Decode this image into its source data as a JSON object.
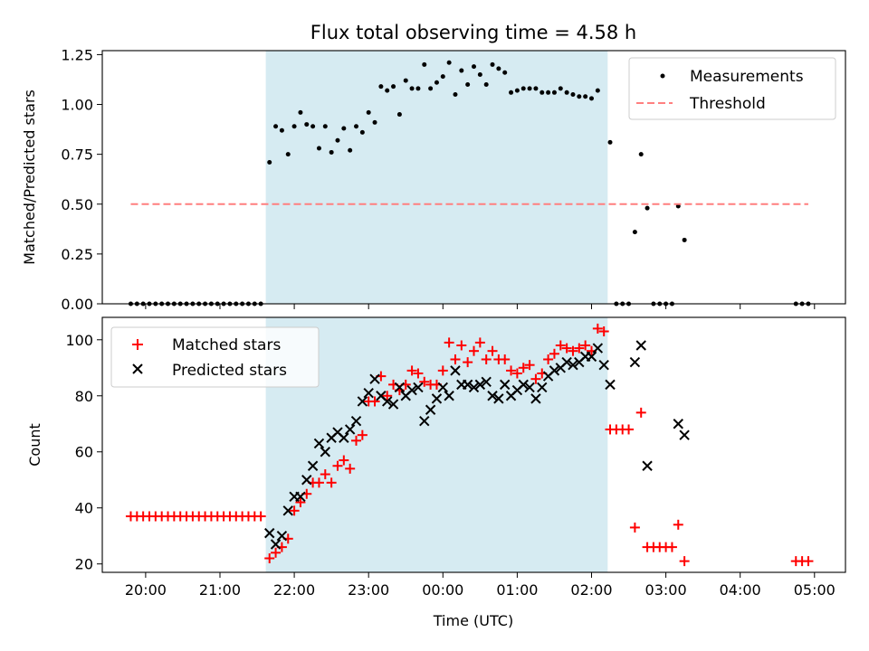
{
  "chart_data": [
    {
      "type": "scatter",
      "title": "Flux total observing time = 4.58 h",
      "ylabel": "Matched/Predicted stars",
      "xlim": [
        "19:25",
        "05:25"
      ],
      "ylim": [
        0,
        1.27
      ],
      "yticks": [
        "0.00",
        "0.25",
        "0.50",
        "0.75",
        "1.00",
        "1.25"
      ],
      "grid": false,
      "legend_position": "top-right",
      "shaded_span": {
        "start": "21:37",
        "end": "02:13",
        "color": "#add8e6"
      },
      "series": [
        {
          "name": "Measurements",
          "marker": "dot",
          "color": "#000000",
          "points": [
            [
              "19:48",
              0
            ],
            [
              "19:53",
              0
            ],
            [
              "19:58",
              0
            ],
            [
              "20:03",
              0
            ],
            [
              "20:08",
              0
            ],
            [
              "20:13",
              0
            ],
            [
              "20:18",
              0
            ],
            [
              "20:23",
              0
            ],
            [
              "20:28",
              0
            ],
            [
              "20:33",
              0
            ],
            [
              "20:38",
              0
            ],
            [
              "20:43",
              0
            ],
            [
              "20:48",
              0
            ],
            [
              "20:53",
              0
            ],
            [
              "20:58",
              0
            ],
            [
              "21:03",
              0
            ],
            [
              "21:08",
              0
            ],
            [
              "21:13",
              0
            ],
            [
              "21:18",
              0
            ],
            [
              "21:23",
              0
            ],
            [
              "21:28",
              0
            ],
            [
              "21:33",
              0
            ],
            [
              "21:40",
              0.71
            ],
            [
              "21:45",
              0.89
            ],
            [
              "21:50",
              0.87
            ],
            [
              "21:55",
              0.75
            ],
            [
              "22:00",
              0.89
            ],
            [
              "22:05",
              0.96
            ],
            [
              "22:10",
              0.9
            ],
            [
              "22:15",
              0.89
            ],
            [
              "22:20",
              0.78
            ],
            [
              "22:25",
              0.89
            ],
            [
              "22:30",
              0.76
            ],
            [
              "22:35",
              0.82
            ],
            [
              "22:40",
              0.88
            ],
            [
              "22:45",
              0.77
            ],
            [
              "22:50",
              0.89
            ],
            [
              "22:55",
              0.86
            ],
            [
              "23:00",
              0.96
            ],
            [
              "23:05",
              0.91
            ],
            [
              "23:10",
              1.09
            ],
            [
              "23:15",
              1.07
            ],
            [
              "23:20",
              1.09
            ],
            [
              "23:25",
              0.95
            ],
            [
              "23:30",
              1.12
            ],
            [
              "23:35",
              1.08
            ],
            [
              "23:40",
              1.08
            ],
            [
              "23:45",
              1.2
            ],
            [
              "23:50",
              1.08
            ],
            [
              "23:55",
              1.11
            ],
            [
              "00:00",
              1.14
            ],
            [
              "00:05",
              1.21
            ],
            [
              "00:10",
              1.05
            ],
            [
              "00:15",
              1.17
            ],
            [
              "00:20",
              1.1
            ],
            [
              "00:25",
              1.19
            ],
            [
              "00:30",
              1.15
            ],
            [
              "00:35",
              1.1
            ],
            [
              "00:40",
              1.2
            ],
            [
              "00:45",
              1.18
            ],
            [
              "00:50",
              1.16
            ],
            [
              "00:55",
              1.06
            ],
            [
              "01:00",
              1.07
            ],
            [
              "01:05",
              1.08
            ],
            [
              "01:10",
              1.08
            ],
            [
              "01:15",
              1.08
            ],
            [
              "01:20",
              1.06
            ],
            [
              "01:25",
              1.06
            ],
            [
              "01:30",
              1.06
            ],
            [
              "01:35",
              1.08
            ],
            [
              "01:40",
              1.06
            ],
            [
              "01:45",
              1.05
            ],
            [
              "01:50",
              1.04
            ],
            [
              "01:55",
              1.04
            ],
            [
              "02:00",
              1.03
            ],
            [
              "02:05",
              1.07
            ],
            [
              "02:15",
              0.81
            ],
            [
              "02:20",
              0
            ],
            [
              "02:25",
              0
            ],
            [
              "02:30",
              0
            ],
            [
              "02:35",
              0.36
            ],
            [
              "02:40",
              0.75
            ],
            [
              "02:45",
              0.48
            ],
            [
              "02:50",
              0
            ],
            [
              "02:55",
              0
            ],
            [
              "03:00",
              0
            ],
            [
              "03:05",
              0
            ],
            [
              "03:10",
              0.49
            ],
            [
              "03:15",
              0.32
            ],
            [
              "04:45",
              0
            ],
            [
              "04:50",
              0
            ],
            [
              "04:55",
              0
            ]
          ]
        },
        {
          "name": "Threshold",
          "marker": "dashed-line",
          "color": "#ff7f7f",
          "points": [
            [
              "19:48",
              0.5
            ],
            [
              "04:55",
              0.5
            ]
          ]
        }
      ]
    },
    {
      "type": "scatter",
      "xlabel": "Time (UTC)",
      "ylabel": "Count",
      "xlim": [
        "19:25",
        "05:25"
      ],
      "ylim": [
        17,
        108
      ],
      "xticks": [
        "20:00",
        "21:00",
        "22:00",
        "23:00",
        "00:00",
        "01:00",
        "02:00",
        "03:00",
        "04:00",
        "05:00"
      ],
      "yticks": [
        "20",
        "40",
        "60",
        "80",
        "100"
      ],
      "grid": false,
      "legend_position": "top-left",
      "shaded_span": {
        "start": "21:37",
        "end": "02:13",
        "color": "#add8e6"
      },
      "series": [
        {
          "name": "Matched stars",
          "marker": "plus",
          "color": "#ff0000",
          "points": [
            [
              "19:48",
              37
            ],
            [
              "19:53",
              37
            ],
            [
              "19:58",
              37
            ],
            [
              "20:03",
              37
            ],
            [
              "20:08",
              37
            ],
            [
              "20:13",
              37
            ],
            [
              "20:18",
              37
            ],
            [
              "20:23",
              37
            ],
            [
              "20:28",
              37
            ],
            [
              "20:33",
              37
            ],
            [
              "20:38",
              37
            ],
            [
              "20:43",
              37
            ],
            [
              "20:48",
              37
            ],
            [
              "20:53",
              37
            ],
            [
              "20:58",
              37
            ],
            [
              "21:03",
              37
            ],
            [
              "21:08",
              37
            ],
            [
              "21:13",
              37
            ],
            [
              "21:18",
              37
            ],
            [
              "21:23",
              37
            ],
            [
              "21:28",
              37
            ],
            [
              "21:33",
              37
            ],
            [
              "21:40",
              22
            ],
            [
              "21:45",
              24
            ],
            [
              "21:50",
              26
            ],
            [
              "21:55",
              29
            ],
            [
              "22:00",
              39
            ],
            [
              "22:05",
              42
            ],
            [
              "22:10",
              45
            ],
            [
              "22:15",
              49
            ],
            [
              "22:20",
              49
            ],
            [
              "22:25",
              52
            ],
            [
              "22:30",
              49
            ],
            [
              "22:35",
              55
            ],
            [
              "22:40",
              57
            ],
            [
              "22:45",
              54
            ],
            [
              "22:50",
              64
            ],
            [
              "22:55",
              66
            ],
            [
              "23:00",
              78
            ],
            [
              "23:05",
              78
            ],
            [
              "23:10",
              87
            ],
            [
              "23:15",
              80
            ],
            [
              "23:20",
              84
            ],
            [
              "23:25",
              82
            ],
            [
              "23:30",
              84
            ],
            [
              "23:35",
              89
            ],
            [
              "23:40",
              88
            ],
            [
              "23:45",
              85
            ],
            [
              "23:50",
              84
            ],
            [
              "23:55",
              84
            ],
            [
              "00:00",
              89
            ],
            [
              "00:05",
              99
            ],
            [
              "00:10",
              93
            ],
            [
              "00:15",
              98
            ],
            [
              "00:20",
              92
            ],
            [
              "00:25",
              96
            ],
            [
              "00:30",
              99
            ],
            [
              "00:35",
              93
            ],
            [
              "00:40",
              96
            ],
            [
              "00:45",
              93
            ],
            [
              "00:50",
              93
            ],
            [
              "00:55",
              89
            ],
            [
              "01:00",
              88
            ],
            [
              "01:05",
              90
            ],
            [
              "01:10",
              91
            ],
            [
              "01:15",
              86
            ],
            [
              "01:20",
              88
            ],
            [
              "01:25",
              93
            ],
            [
              "01:30",
              95
            ],
            [
              "01:35",
              98
            ],
            [
              "01:40",
              97
            ],
            [
              "01:45",
              96
            ],
            [
              "01:50",
              97
            ],
            [
              "01:55",
              98
            ],
            [
              "02:00",
              96
            ],
            [
              "02:05",
              104
            ],
            [
              "02:10",
              103
            ],
            [
              "02:15",
              68
            ],
            [
              "02:20",
              68
            ],
            [
              "02:25",
              68
            ],
            [
              "02:30",
              68
            ],
            [
              "02:35",
              33
            ],
            [
              "02:40",
              74
            ],
            [
              "02:45",
              26
            ],
            [
              "02:50",
              26
            ],
            [
              "02:55",
              26
            ],
            [
              "03:00",
              26
            ],
            [
              "03:05",
              26
            ],
            [
              "03:10",
              34
            ],
            [
              "03:15",
              21
            ],
            [
              "04:45",
              21
            ],
            [
              "04:50",
              21
            ],
            [
              "04:55",
              21
            ]
          ]
        },
        {
          "name": "Predicted stars",
          "marker": "x",
          "color": "#000000",
          "points": [
            [
              "21:40",
              31
            ],
            [
              "21:45",
              27
            ],
            [
              "21:50",
              30
            ],
            [
              "21:55",
              39
            ],
            [
              "22:00",
              44
            ],
            [
              "22:05",
              44
            ],
            [
              "22:10",
              50
            ],
            [
              "22:15",
              55
            ],
            [
              "22:20",
              63
            ],
            [
              "22:25",
              60
            ],
            [
              "22:30",
              65
            ],
            [
              "22:35",
              67
            ],
            [
              "22:40",
              65
            ],
            [
              "22:45",
              68
            ],
            [
              "22:50",
              71
            ],
            [
              "22:55",
              78
            ],
            [
              "23:00",
              81
            ],
            [
              "23:05",
              86
            ],
            [
              "23:10",
              80
            ],
            [
              "23:15",
              78
            ],
            [
              "23:20",
              77
            ],
            [
              "23:25",
              83
            ],
            [
              "23:30",
              80
            ],
            [
              "23:35",
              82
            ],
            [
              "23:40",
              83
            ],
            [
              "23:45",
              71
            ],
            [
              "23:50",
              75
            ],
            [
              "23:55",
              79
            ],
            [
              "00:00",
              83
            ],
            [
              "00:05",
              80
            ],
            [
              "00:10",
              89
            ],
            [
              "00:15",
              84
            ],
            [
              "00:20",
              84
            ],
            [
              "00:25",
              83
            ],
            [
              "00:30",
              84
            ],
            [
              "00:35",
              85
            ],
            [
              "00:40",
              80
            ],
            [
              "00:45",
              79
            ],
            [
              "00:50",
              84
            ],
            [
              "00:55",
              80
            ],
            [
              "01:00",
              82
            ],
            [
              "01:05",
              84
            ],
            [
              "01:10",
              83
            ],
            [
              "01:15",
              79
            ],
            [
              "01:20",
              83
            ],
            [
              "01:25",
              87
            ],
            [
              "01:30",
              89
            ],
            [
              "01:35",
              90
            ],
            [
              "01:40",
              92
            ],
            [
              "01:45",
              91
            ],
            [
              "01:50",
              92
            ],
            [
              "01:55",
              94
            ],
            [
              "02:00",
              94
            ],
            [
              "02:05",
              97
            ],
            [
              "02:10",
              91
            ],
            [
              "02:15",
              84
            ],
            [
              "02:35",
              92
            ],
            [
              "02:40",
              98
            ],
            [
              "02:45",
              55
            ],
            [
              "03:10",
              70
            ],
            [
              "03:15",
              66
            ]
          ]
        }
      ]
    }
  ]
}
